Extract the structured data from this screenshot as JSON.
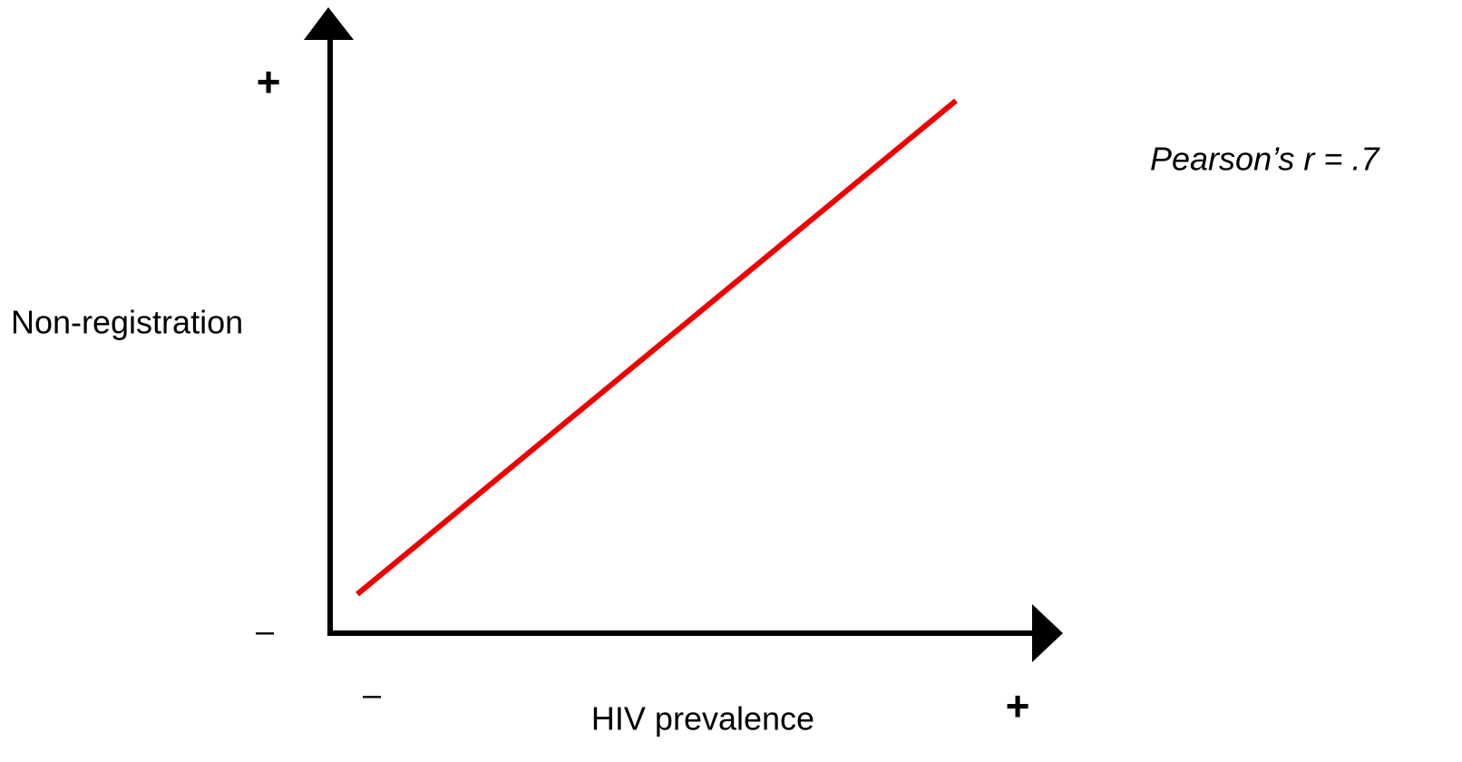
{
  "y_axis": {
    "label": "Non-registration",
    "high": "+",
    "low": "–"
  },
  "x_axis": {
    "label": "HIV prevalence",
    "high": "+",
    "low": "–"
  },
  "annotation": "Pearson’s r = .7"
}
